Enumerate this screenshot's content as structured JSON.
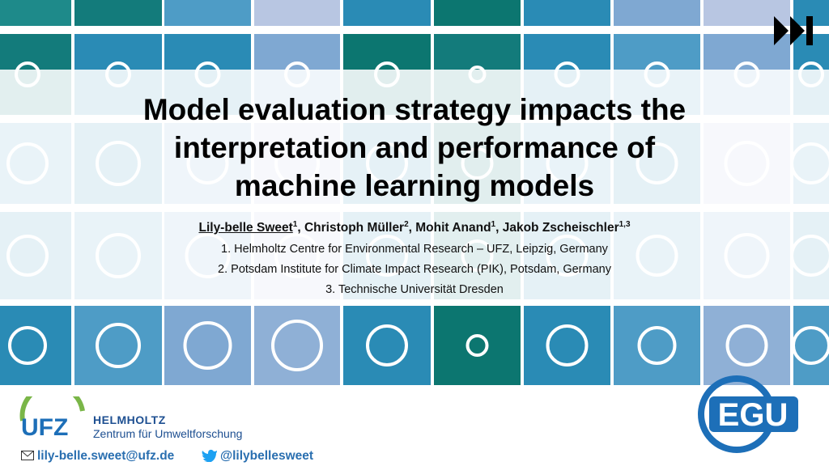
{
  "title": {
    "lines": [
      "Model evaluation strategy impacts the",
      "interpretation and performance of",
      "machine learning models"
    ]
  },
  "authors": [
    {
      "name": "Lily-belle Sweet",
      "sup": "1"
    },
    {
      "name": ", Christoph Müller",
      "sup": "2"
    },
    {
      "name": ", Mohit Anand",
      "sup": "1"
    },
    {
      "name": ", Jakob Zscheischler",
      "sup": "1,3"
    }
  ],
  "affiliations": [
    "1. Helmholtz Centre for Environmental Research – UFZ, Leipzig, Germany",
    "2. Potsdam Institute for Climate Impact Research (PIK), Potsdam, Germany",
    "3. Technische Universität Dresden"
  ],
  "footer": {
    "ufz_logo": "UFZ",
    "helmholtz": "HELMHOLTZ",
    "centre": "Zentrum für Umweltforschung",
    "email": "lily-belle.sweet@ufz.de",
    "twitter": "@lilybellesweet",
    "egu_logo": "EGU"
  }
}
